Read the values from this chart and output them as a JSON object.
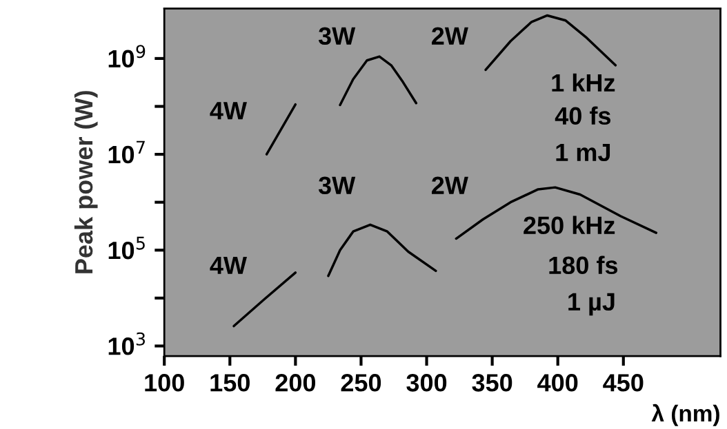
{
  "chart_data": {
    "type": "line",
    "xlabel": "λ (nm)",
    "ylabel": "Peak power (W)",
    "log": "y",
    "xlim": [
      100,
      524
    ],
    "xticks": [
      100,
      150,
      200,
      250,
      300,
      350,
      400,
      450
    ],
    "ylim": [
      616,
      11000000000
    ],
    "yticks": [
      {
        "value": 1000,
        "label": "10$^{3}$"
      },
      {
        "value": 10000,
        "label": null
      },
      {
        "value": 100000,
        "label": "10$^{5}$"
      },
      {
        "value": 1000000,
        "label": null
      },
      {
        "value": 10000000,
        "label": "10$^{7}$"
      },
      {
        "value": 100000000,
        "label": null
      },
      {
        "value": 1000000000,
        "label": "10$^{9}$"
      }
    ],
    "grid": false,
    "marker": "none",
    "line_style": "solid",
    "series": [
      {
        "color": "#000000",
        "x": [
          178,
          200
        ],
        "values": [
          10000000,
          110000000
        ]
      },
      {
        "color": "#000000",
        "x": [
          234,
          244,
          254.5,
          264,
          273,
          282,
          292
        ],
        "values": [
          107000000,
          370000000,
          910000000,
          1100000000,
          720000000,
          320000000,
          117000000
        ]
      },
      {
        "color": "#000000",
        "x": [
          345,
          364,
          380,
          392,
          406,
          422,
          444
        ],
        "values": [
          580000000,
          2300000000,
          5800000000,
          7900000000,
          6200000000,
          2700000000,
          720000000
        ]
      },
      {
        "color": "#000000",
        "x": [
          153,
          176,
          200
        ],
        "values": [
          2600,
          9300,
          34000
        ]
      },
      {
        "color": "#000000",
        "x": [
          225,
          234,
          244,
          257,
          270,
          286,
          307
        ],
        "values": [
          29000,
          100000,
          245000,
          340000,
          245000,
          93000,
          37000
        ]
      },
      {
        "color": "#000000",
        "x": [
          322.5,
          343,
          364,
          385,
          398,
          417,
          448,
          475
        ],
        "values": [
          174000,
          440000,
          1000000,
          1860000,
          2040000,
          1450000,
          510000,
          230000
        ]
      }
    ],
    "annotations": [
      "4W",
      "3W",
      "2W",
      "1 kHz",
      "40 fs",
      "1 mJ",
      "3W",
      "2W",
      "4W",
      "250 kHz",
      "180 fs",
      "1 µJ"
    ]
  }
}
